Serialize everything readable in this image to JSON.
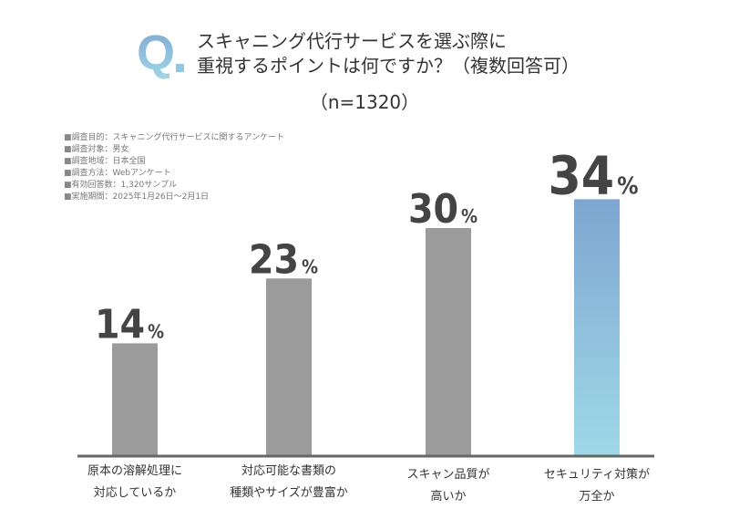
{
  "header": {
    "q_mark": "Q",
    "title_line1": "スキャニング代行サービスを選ぶ際に",
    "title_line2": "重視するポイントは何ですか？（複数回答可）",
    "sample": "（n=1320）"
  },
  "survey_info": [
    "調査目的：スキャニング代行サービスに関するアンケート",
    "調査対象：男女",
    "調査地域：日本全国",
    "調査方法：Webアンケート",
    "有効回答数：1,320サンプル",
    "実施期間：2025年1月26日〜2月1日"
  ],
  "chart_data": {
    "type": "bar",
    "categories": [
      [
        "原本の溶解処理に",
        "対応しているか"
      ],
      [
        "対応可能な書類の",
        "種類やサイズが豊富か"
      ],
      [
        "スキャン品質が",
        "高いか"
      ],
      [
        "セキュリティ対策が",
        "万全か"
      ]
    ],
    "values": [
      14,
      23,
      30,
      34
    ],
    "unit": "%",
    "ylim": [
      0,
      35
    ],
    "grid": false,
    "colors": {
      "default": "#9b9b9b",
      "highlight_top": "#7ea6d0",
      "highlight_bottom": "#9fd8e8",
      "axis": "#666666",
      "label": "#444444"
    }
  }
}
